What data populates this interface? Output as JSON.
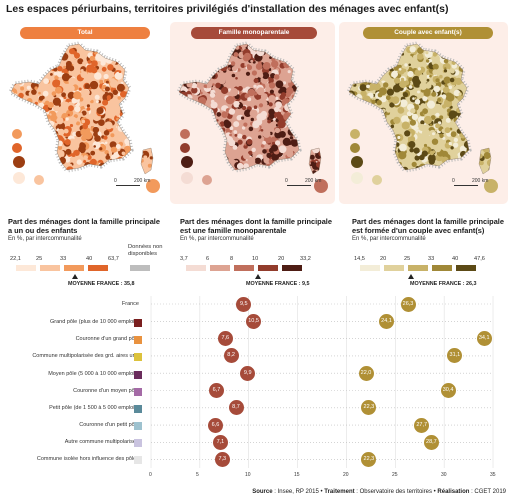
{
  "title": "Les espaces périurbains, territoires privilégiés d'installation des ménages avec enfant(s)",
  "maps": [
    {
      "label": "Total",
      "color": "#ee8040",
      "palette": [
        "#fde8d8",
        "#f9c49f",
        "#f29a5c",
        "#e0652a",
        "#9c3e12"
      ],
      "scale": {
        "min": "0",
        "max": "200 km"
      }
    },
    {
      "label": "Famille monoparentale",
      "color": "#a64b3a",
      "palette": [
        "#f4dcd4",
        "#dda392",
        "#c06f5c",
        "#923c2c",
        "#4e1d14"
      ],
      "scale": {
        "min": "0",
        "max": "200 km"
      }
    },
    {
      "label": "Couple avec enfant(s)",
      "color": "#b09035",
      "palette": [
        "#f3edd8",
        "#e0d19c",
        "#c8b268",
        "#a08838",
        "#5c4a16"
      ],
      "scale": {
        "min": "0",
        "max": "200 km"
      }
    }
  ],
  "legends": [
    {
      "title1": "Part des ménages dont la famille principale",
      "title2": "a un ou des enfants",
      "subtitle": "En %, par intercommunalité",
      "ticks": [
        "22,1",
        "25",
        "33",
        "40",
        "63,7"
      ],
      "average_label": "MOYENNE FRANCE :",
      "average_value": "35,8",
      "na_label1": "Données non",
      "na_label2": "disponibles"
    },
    {
      "title1": "Part des ménages dont la famille principale",
      "title2": "est une famille monoparentale",
      "subtitle": "En %, par intercommunalité",
      "ticks": [
        "3,7",
        "6",
        "8",
        "10",
        "20",
        "33,2"
      ],
      "average_label": "MOYENNE FRANCE :",
      "average_value": "9,5"
    },
    {
      "title1": "Part des ménages dont la famille principale",
      "title2": "est formée d'un couple avec enfant(s)",
      "subtitle": "En %, par intercommunalité",
      "ticks": [
        "14,5",
        "20",
        "25",
        "33",
        "40",
        "47,6"
      ],
      "average_label": "MOYENNE FRANCE :",
      "average_value": "26,3"
    }
  ],
  "chart_data": {
    "type": "scatter",
    "xlim": [
      0,
      35
    ],
    "xticks": [
      "0",
      "5",
      "10",
      "15",
      "20",
      "25",
      "30",
      "35"
    ],
    "categories": [
      {
        "label": "France",
        "color": "",
        "mono": 9.5,
        "mono_label": "9,5",
        "couple": 26.3,
        "couple_label": "26,3"
      },
      {
        "label": "Grand pôle (plus de 10 000 emplois)",
        "color": "#7a1f1f",
        "mono": 10.5,
        "mono_label": "10,5",
        "couple": 24.1,
        "couple_label": "24,1"
      },
      {
        "label": "Couronne d'un grand pôle",
        "color": "#e9923f",
        "mono": 7.6,
        "mono_label": "7,6",
        "couple": 34.1,
        "couple_label": "34,1"
      },
      {
        "label": "Commune multipolarisée des grd. aires urb.",
        "color": "#dcc23c",
        "mono": 8.2,
        "mono_label": "8,2",
        "couple": 31.1,
        "couple_label": "31,1"
      },
      {
        "label": "Moyen pôle (5 000 à 10 000 emplois)",
        "color": "#6a2c5c",
        "mono": 9.9,
        "mono_label": "9,9",
        "couple": 22.0,
        "couple_label": "22,0"
      },
      {
        "label": "Couronne d'un moyen pôle",
        "color": "#a46aa6",
        "mono": 6.7,
        "mono_label": "6,7",
        "couple": 30.4,
        "couple_label": "30,4"
      },
      {
        "label": "Petit pôle (de 1 500 à 5 000 emplois)",
        "color": "#5a8a9a",
        "mono": 8.7,
        "mono_label": "8,7",
        "couple": 22.3,
        "couple_label": "22,3"
      },
      {
        "label": "Couronne d'un petit pôle",
        "color": "#9ec2cf",
        "mono": 6.6,
        "mono_label": "6,6",
        "couple": 27.7,
        "couple_label": "27,7"
      },
      {
        "label": "Autre commune multipolarisée",
        "color": "#c9c3df",
        "mono": 7.1,
        "mono_label": "7,1",
        "couple": 28.7,
        "couple_label": "28,7"
      },
      {
        "label": "Commune isolée hors influence des pôles",
        "color": "#e6e6e6",
        "mono": 7.3,
        "mono_label": "7,3",
        "couple": 22.3,
        "couple_label": "22,3"
      }
    ],
    "series": [
      {
        "key": "mono",
        "color": "#a64b3a"
      },
      {
        "key": "couple",
        "color": "#b09035"
      }
    ]
  },
  "source": {
    "label1": "Source",
    "text1": " : Insee, RP 2015 • ",
    "label2": "Traitement",
    "text2": " : Observatoire des territoires • ",
    "label3": "Réalisation",
    "text3": " : CGET 2019"
  }
}
